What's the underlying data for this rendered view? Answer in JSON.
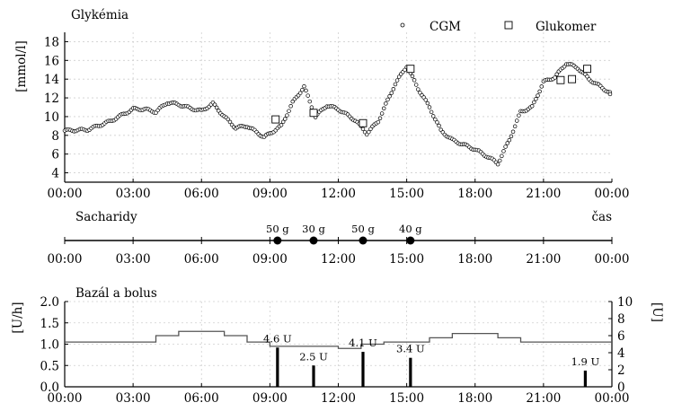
{
  "chart_data": [
    {
      "type": "scatter",
      "title": "Glykémia",
      "ylabel": "[mmol/l]",
      "xlabel": "",
      "xlim": [
        "00:00",
        "24:00"
      ],
      "ylim": [
        3,
        19
      ],
      "yticks": [
        4,
        6,
        8,
        10,
        12,
        14,
        16,
        18
      ],
      "xticks": [
        "00:00",
        "03:00",
        "06:00",
        "09:00",
        "12:00",
        "15:00",
        "18:00",
        "21:00",
        "00:00"
      ],
      "grid": true,
      "legend": "top-right",
      "series": [
        {
          "name": "CGM",
          "marker": "circle",
          "points": [
            [
              "00:00",
              8.5
            ],
            [
              "01:00",
              8.6
            ],
            [
              "02:00",
              9.5
            ],
            [
              "03:00",
              10.8
            ],
            [
              "03:30",
              10.8
            ],
            [
              "04:00",
              10.5
            ],
            [
              "04:30",
              11.5
            ],
            [
              "05:00",
              11.3
            ],
            [
              "05:30",
              10.9
            ],
            [
              "06:00",
              10.6
            ],
            [
              "06:30",
              11.4
            ],
            [
              "07:00",
              10.0
            ],
            [
              "07:30",
              8.8
            ],
            [
              "08:00",
              9.0
            ],
            [
              "08:45",
              7.8
            ],
            [
              "09:30",
              9.0
            ],
            [
              "10:00",
              11.5
            ],
            [
              "10:30",
              13.2
            ],
            [
              "11:00",
              10.0
            ],
            [
              "11:30",
              11.2
            ],
            [
              "12:00",
              10.8
            ],
            [
              "12:45",
              9.6
            ],
            [
              "13:15",
              8.2
            ],
            [
              "13:45",
              9.5
            ],
            [
              "14:30",
              13.5
            ],
            [
              "15:00",
              15.4
            ],
            [
              "15:30",
              13.0
            ],
            [
              "16:00",
              11.0
            ],
            [
              "16:30",
              8.5
            ],
            [
              "17:00",
              7.5
            ],
            [
              "17:30",
              7.0
            ],
            [
              "18:00",
              6.5
            ],
            [
              "18:30",
              5.8
            ],
            [
              "19:00",
              5.0
            ],
            [
              "19:30",
              7.5
            ],
            [
              "20:00",
              10.5
            ],
            [
              "20:30",
              11.0
            ],
            [
              "21:00",
              13.7
            ],
            [
              "21:30",
              14.2
            ],
            [
              "22:00",
              15.7
            ],
            [
              "22:30",
              15.2
            ],
            [
              "23:00",
              14.0
            ],
            [
              "24:00",
              12.4
            ]
          ]
        },
        {
          "name": "Glukomer",
          "marker": "square",
          "points": [
            [
              "09:15",
              9.7
            ],
            [
              "10:55",
              10.4
            ],
            [
              "13:05",
              9.3
            ],
            [
              "15:10",
              15.1
            ],
            [
              "21:45",
              13.9
            ],
            [
              "22:15",
              14.0
            ],
            [
              "22:55",
              15.1
            ]
          ]
        }
      ]
    },
    {
      "type": "timeline",
      "title": "Sacharidy",
      "xlabel": "čas",
      "xlim": [
        "00:00",
        "24:00"
      ],
      "xticks": [
        "00:00",
        "03:00",
        "06:00",
        "09:00",
        "12:00",
        "15:00",
        "18:00",
        "21:00",
        "00:00"
      ],
      "events": [
        {
          "time": "09:20",
          "label": "50 g"
        },
        {
          "time": "10:55",
          "label": "30 g"
        },
        {
          "time": "13:05",
          "label": "50 g"
        },
        {
          "time": "15:10",
          "label": "40 g"
        }
      ]
    },
    {
      "type": "bar",
      "title": "Bazál a bolus",
      "ylabel": "[U/h]",
      "ylabel_right": "[U]",
      "xlim": [
        "00:00",
        "24:00"
      ],
      "ylim": [
        0,
        2.0
      ],
      "ylim_right": [
        0,
        10
      ],
      "yticks": [
        "0.0",
        "0.5",
        "1.0",
        "1.5",
        "2.0"
      ],
      "yticks_right": [
        "0",
        "2",
        "4",
        "6",
        "8",
        "10"
      ],
      "xticks": [
        "00:00",
        "03:00",
        "06:00",
        "09:00",
        "12:00",
        "15:00",
        "18:00",
        "21:00",
        "00:00"
      ],
      "grid": true,
      "basal": [
        {
          "start": "00:00",
          "end": "04:00",
          "rate": 1.05
        },
        {
          "start": "04:00",
          "end": "05:00",
          "rate": 1.2
        },
        {
          "start": "05:00",
          "end": "07:00",
          "rate": 1.3
        },
        {
          "start": "07:00",
          "end": "08:00",
          "rate": 1.2
        },
        {
          "start": "08:00",
          "end": "09:00",
          "rate": 1.05
        },
        {
          "start": "09:00",
          "end": "12:00",
          "rate": 0.95
        },
        {
          "start": "12:00",
          "end": "13:00",
          "rate": 0.9
        },
        {
          "start": "13:00",
          "end": "14:00",
          "rate": 1.0
        },
        {
          "start": "14:00",
          "end": "16:00",
          "rate": 1.05
        },
        {
          "start": "16:00",
          "end": "17:00",
          "rate": 1.15
        },
        {
          "start": "17:00",
          "end": "19:00",
          "rate": 1.25
        },
        {
          "start": "19:00",
          "end": "20:00",
          "rate": 1.15
        },
        {
          "start": "20:00",
          "end": "24:00",
          "rate": 1.05
        }
      ],
      "bolus": [
        {
          "time": "09:20",
          "units": 4.6,
          "label": "4.6 U"
        },
        {
          "time": "10:55",
          "units": 2.5,
          "label": "2.5 U"
        },
        {
          "time": "13:05",
          "units": 4.1,
          "label": "4.1 U"
        },
        {
          "time": "15:10",
          "units": 3.4,
          "label": "3.4 U"
        },
        {
          "time": "22:50",
          "units": 1.9,
          "label": "1.9 U"
        }
      ]
    }
  ]
}
